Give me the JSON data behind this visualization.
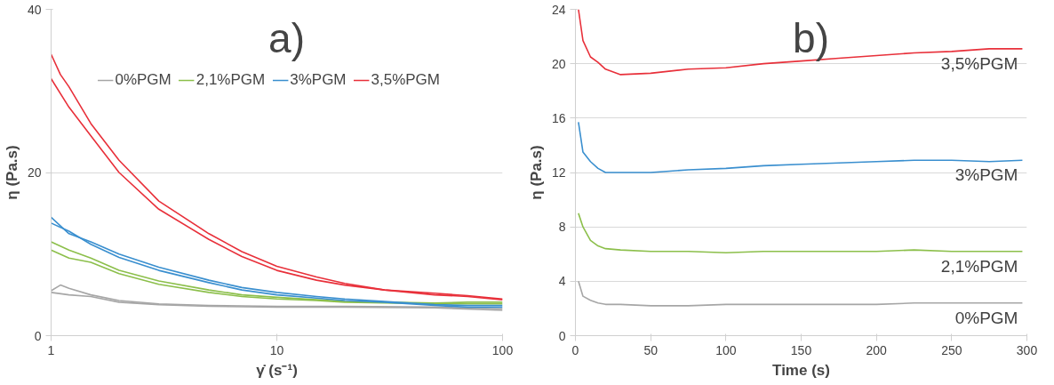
{
  "chart_data": [
    {
      "type": "line",
      "title": "a)",
      "xlabel": "γ̇ (s⁻¹)",
      "ylabel": "η (Pa.s)",
      "log": "x",
      "xlim": [
        1,
        100
      ],
      "xticks": [
        1,
        10,
        100
      ],
      "ylim": [
        0,
        40
      ],
      "yticks": [
        0,
        20,
        40
      ],
      "grid": "y",
      "legend": "top right",
      "series": [
        {
          "name": "0%PGM",
          "color": "#a6a6a6",
          "x": [
            1,
            1.1,
            1.2,
            1.5,
            2,
            3,
            5,
            10,
            20,
            50,
            100
          ],
          "values": [
            5.5,
            6.2,
            5.8,
            5.0,
            4.3,
            3.9,
            3.7,
            3.6,
            3.6,
            3.5,
            3.3
          ]
        },
        {
          "color": "#a6a6a6",
          "x": [
            1,
            1.2,
            1.5,
            2,
            3,
            5,
            10,
            20,
            50,
            100
          ],
          "values": [
            5.3,
            5.0,
            4.8,
            4.1,
            3.8,
            3.6,
            3.5,
            3.5,
            3.4,
            3.1
          ]
        },
        {
          "name": "2,1%PGM",
          "color": "#8cbf4b",
          "x": [
            1,
            1.2,
            1.5,
            2,
            3,
            5,
            7,
            10,
            15,
            20,
            30,
            50,
            70,
            100
          ],
          "values": [
            11.5,
            10.5,
            9.5,
            8,
            6.7,
            5.6,
            5.0,
            4.7,
            4.4,
            4.2,
            4.1,
            4.0,
            4.1,
            4.1
          ]
        },
        {
          "color": "#8cbf4b",
          "x": [
            1,
            1.2,
            1.5,
            2,
            3,
            5,
            7,
            10,
            15,
            20,
            30,
            50,
            70,
            100
          ],
          "values": [
            10.5,
            9.5,
            9,
            7.6,
            6.3,
            5.3,
            4.8,
            4.5,
            4.3,
            4.1,
            4.0,
            3.9,
            3.9,
            3.9
          ]
        },
        {
          "name": "3%PGM",
          "color": "#3a8fcf",
          "x": [
            1,
            1.2,
            1.5,
            2,
            3,
            5,
            7,
            10,
            15,
            20,
            30,
            50,
            70,
            100
          ],
          "values": [
            14.5,
            12.5,
            11.5,
            10,
            8.4,
            6.8,
            5.9,
            5.3,
            4.8,
            4.5,
            4.2,
            3.8,
            3.7,
            3.7
          ]
        },
        {
          "color": "#3a8fcf",
          "x": [
            1,
            1.2,
            1.5,
            2,
            3,
            5,
            7,
            10,
            15,
            20,
            30,
            50,
            70,
            100
          ],
          "values": [
            13.8,
            12.8,
            11.2,
            9.6,
            8.0,
            6.5,
            5.6,
            5.0,
            4.6,
            4.3,
            4.1,
            3.7,
            3.5,
            3.5
          ]
        },
        {
          "name": "3,5%PGM",
          "color": "#e8303a",
          "x": [
            1,
            1.1,
            1.2,
            1.5,
            2,
            3,
            5,
            7,
            10,
            15,
            20,
            30,
            50,
            70,
            100
          ],
          "values": [
            34.5,
            32,
            30.5,
            26,
            21.5,
            16.5,
            12.5,
            10.3,
            8.5,
            7.2,
            6.4,
            5.6,
            5.2,
            4.9,
            4.5
          ]
        },
        {
          "color": "#e8303a",
          "x": [
            1,
            1.2,
            1.5,
            2,
            3,
            5,
            7,
            10,
            15,
            20,
            30,
            50,
            70,
            100
          ],
          "values": [
            31.5,
            28,
            24.5,
            20,
            15.5,
            11.8,
            9.7,
            8,
            6.8,
            6.2,
            5.6,
            5.0,
            4.8,
            4.4
          ]
        }
      ]
    },
    {
      "type": "line",
      "title": "b)",
      "xlabel": "Time (s)",
      "ylabel": "η (Pa.s)",
      "xlim": [
        0,
        300
      ],
      "xticks": [
        0,
        50,
        100,
        150,
        200,
        250,
        300
      ],
      "ylim": [
        0,
        24
      ],
      "yticks": [
        0,
        4,
        8,
        12,
        16,
        20,
        24
      ],
      "grid": "y",
      "legend": false,
      "x": [
        2,
        5,
        10,
        15,
        20,
        30,
        50,
        75,
        100,
        125,
        150,
        175,
        200,
        225,
        250,
        275,
        297
      ],
      "series": [
        {
          "name": "3,5%PGM",
          "color": "#e8303a",
          "values": [
            24,
            21.7,
            20.5,
            20.1,
            19.6,
            19.2,
            19.3,
            19.6,
            19.7,
            20.0,
            20.2,
            20.4,
            20.6,
            20.8,
            20.9,
            21.1,
            21.1
          ]
        },
        {
          "name": "3%PGM",
          "color": "#3a8fcf",
          "values": [
            15.7,
            13.5,
            12.8,
            12.3,
            12.0,
            12.0,
            12.0,
            12.2,
            12.3,
            12.5,
            12.6,
            12.7,
            12.8,
            12.9,
            12.9,
            12.8,
            12.9
          ]
        },
        {
          "name": "2,1%PGM",
          "color": "#8cbf4b",
          "values": [
            9,
            8,
            7,
            6.6,
            6.4,
            6.3,
            6.2,
            6.2,
            6.1,
            6.2,
            6.2,
            6.2,
            6.2,
            6.3,
            6.2,
            6.2,
            6.2
          ]
        },
        {
          "name": "0%PGM",
          "color": "#a6a6a6",
          "values": [
            4,
            2.9,
            2.6,
            2.4,
            2.3,
            2.3,
            2.2,
            2.2,
            2.3,
            2.3,
            2.3,
            2.3,
            2.3,
            2.4,
            2.4,
            2.4,
            2.4
          ]
        }
      ]
    }
  ]
}
